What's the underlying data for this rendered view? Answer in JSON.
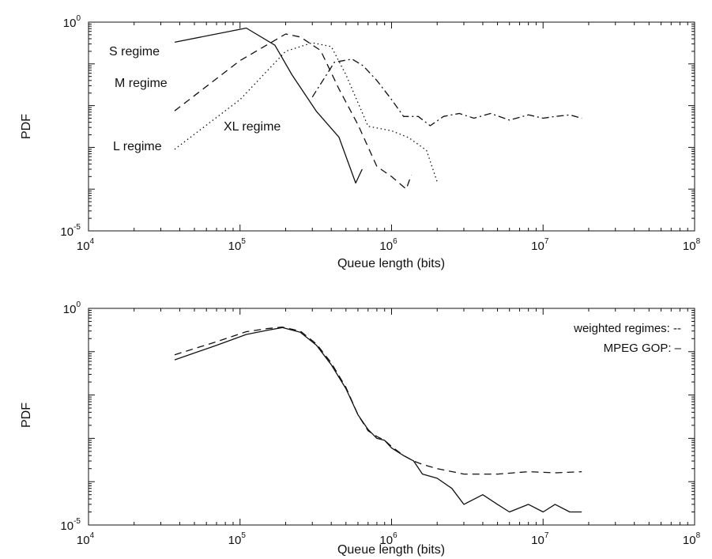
{
  "chart_data": [
    {
      "type": "line",
      "xlabel": "Queue length (bits)",
      "ylabel": "PDF",
      "xscale": "log",
      "yscale": "log",
      "xlim": [
        10000,
        100000000
      ],
      "ylim": [
        1e-05,
        1
      ],
      "x_ticks": [
        {
          "base": "10",
          "exp": "4"
        },
        {
          "base": "10",
          "exp": "5"
        },
        {
          "base": "10",
          "exp": "6"
        },
        {
          "base": "10",
          "exp": "7"
        },
        {
          "base": "10",
          "exp": "8"
        }
      ],
      "y_ticks": [
        {
          "base": "10",
          "exp": "0"
        },
        {
          "base": "10",
          "exp": "-5"
        }
      ],
      "annotations": [
        {
          "text": "S regime",
          "series": "S"
        },
        {
          "text": "M regime",
          "series": "M"
        },
        {
          "text": "L regime",
          "series": "L"
        },
        {
          "text": "XL regime",
          "series": "XL"
        }
      ],
      "series": [
        {
          "id": "S",
          "style": "solid",
          "x": [
            37000,
            110000,
            170000,
            220000,
            320000,
            450000,
            580000,
            640000
          ],
          "y": [
            0.33,
            0.72,
            0.28,
            0.055,
            0.0072,
            0.00175,
            0.00014,
            0.0003
          ]
        },
        {
          "id": "M",
          "style": "dashed",
          "x": [
            37000,
            100000,
            200000,
            250000,
            340000,
            450000,
            600000,
            800000,
            1000000,
            1250000,
            1350000
          ],
          "y": [
            0.0075,
            0.12,
            0.52,
            0.44,
            0.21,
            0.025,
            0.0035,
            0.00035,
            0.0002,
            0.0001,
            0.00022
          ]
        },
        {
          "id": "L",
          "style": "dotted",
          "x": [
            37000,
            100000,
            200000,
            300000,
            400000,
            500000,
            700000,
            1000000,
            1300000,
            1700000,
            2000000
          ],
          "y": [
            0.0009,
            0.014,
            0.2,
            0.32,
            0.26,
            0.055,
            0.0032,
            0.0025,
            0.0017,
            0.00085,
            0.00015
          ]
        },
        {
          "id": "XL",
          "style": "dashdot",
          "x": [
            300000,
            420000,
            550000,
            650000,
            800000,
            1000000,
            1200000,
            1500000,
            1800000,
            2200000,
            2800000,
            3500000,
            4500000,
            6000000,
            8000000,
            10000000,
            12000000,
            15000000,
            18000000
          ],
          "y": [
            0.016,
            0.11,
            0.13,
            0.09,
            0.04,
            0.014,
            0.0055,
            0.0055,
            0.0033,
            0.0055,
            0.0065,
            0.005,
            0.0065,
            0.0045,
            0.006,
            0.005,
            0.0055,
            0.006,
            0.005
          ]
        }
      ]
    },
    {
      "type": "line",
      "xlabel": "Queue length (bits)",
      "ylabel": "PDF",
      "xscale": "log",
      "yscale": "log",
      "xlim": [
        10000,
        100000000
      ],
      "ylim": [
        1e-05,
        1
      ],
      "x_ticks": [
        {
          "base": "10",
          "exp": "4"
        },
        {
          "base": "10",
          "exp": "5"
        },
        {
          "base": "10",
          "exp": "6"
        },
        {
          "base": "10",
          "exp": "7"
        },
        {
          "base": "10",
          "exp": "8"
        }
      ],
      "y_ticks": [
        {
          "base": "10",
          "exp": "0"
        },
        {
          "base": "10",
          "exp": "-5"
        }
      ],
      "legend": {
        "placement": "top-right",
        "entries": [
          {
            "label": "weighted regimes: --"
          },
          {
            "label": "MPEG GOP: –"
          }
        ]
      },
      "series": [
        {
          "id": "weighted",
          "style": "dashed",
          "x": [
            37000,
            70000,
            110000,
            150000,
            190000,
            250000,
            320000,
            400000,
            500000,
            600000,
            700000,
            800000,
            900000,
            1000000,
            1200000,
            1400000,
            1600000,
            2000000,
            3000000,
            5000000,
            8000000,
            12000000,
            18000000
          ],
          "y": [
            0.085,
            0.17,
            0.29,
            0.34,
            0.37,
            0.3,
            0.15,
            0.055,
            0.015,
            0.0035,
            0.0015,
            0.0011,
            0.0009,
            0.00065,
            0.0004,
            0.0003,
            0.00025,
            0.0002,
            0.00015,
            0.00015,
            0.00017,
            0.00016,
            0.00017
          ]
        },
        {
          "id": "mpeg",
          "style": "solid",
          "x": [
            37000,
            70000,
            110000,
            150000,
            190000,
            250000,
            320000,
            400000,
            500000,
            600000,
            700000,
            800000,
            900000,
            1000000,
            1200000,
            1400000,
            1600000,
            2000000,
            2500000,
            3000000,
            4000000,
            5000000,
            6000000,
            8000000,
            10000000,
            12000000,
            15000000,
            18000000
          ],
          "y": [
            0.065,
            0.14,
            0.25,
            0.31,
            0.36,
            0.28,
            0.14,
            0.05,
            0.014,
            0.0035,
            0.0016,
            0.001,
            0.0009,
            0.0006,
            0.0004,
            0.0003,
            0.00015,
            0.00012,
            7e-05,
            3e-05,
            5e-05,
            3e-05,
            2e-05,
            3e-05,
            2e-05,
            3e-05,
            2e-05,
            2e-05
          ]
        }
      ]
    }
  ]
}
